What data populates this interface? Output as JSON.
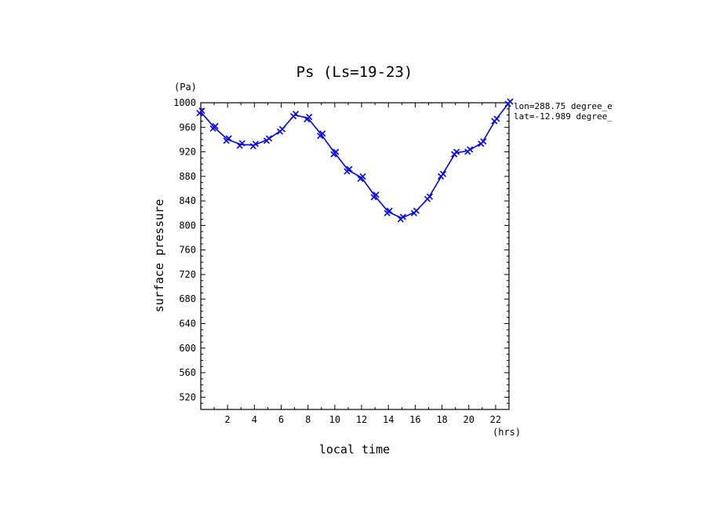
{
  "chart_data": {
    "type": "line",
    "title": "Ps (Ls=19-23)",
    "xlabel": "local time",
    "ylabel": "surface pressure",
    "x_unit": "(hrs)",
    "y_unit": "(Pa)",
    "xlim": [
      0,
      23
    ],
    "ylim": [
      500,
      1000
    ],
    "x_ticks": [
      2,
      4,
      6,
      8,
      10,
      12,
      14,
      16,
      18,
      20,
      22
    ],
    "y_ticks": [
      520,
      560,
      600,
      640,
      680,
      720,
      760,
      800,
      840,
      880,
      920,
      960,
      1000
    ],
    "x": [
      0,
      1,
      2,
      3,
      4,
      5,
      6,
      7,
      8,
      9,
      10,
      11,
      12,
      13,
      14,
      15,
      16,
      17,
      18,
      19,
      20,
      21,
      22,
      23
    ],
    "series": [
      {
        "values": [
          985,
          960,
          940,
          932,
          931,
          940,
          955,
          980,
          975,
          948,
          918,
          890,
          878,
          848,
          822,
          812,
          822,
          845,
          882,
          918,
          922,
          935,
          972,
          1000
        ]
      }
    ],
    "annotations": [
      "lon=288.75 degree_e",
      "lat=-12.989 degree_"
    ],
    "grid": false,
    "color": "#0000ff"
  }
}
